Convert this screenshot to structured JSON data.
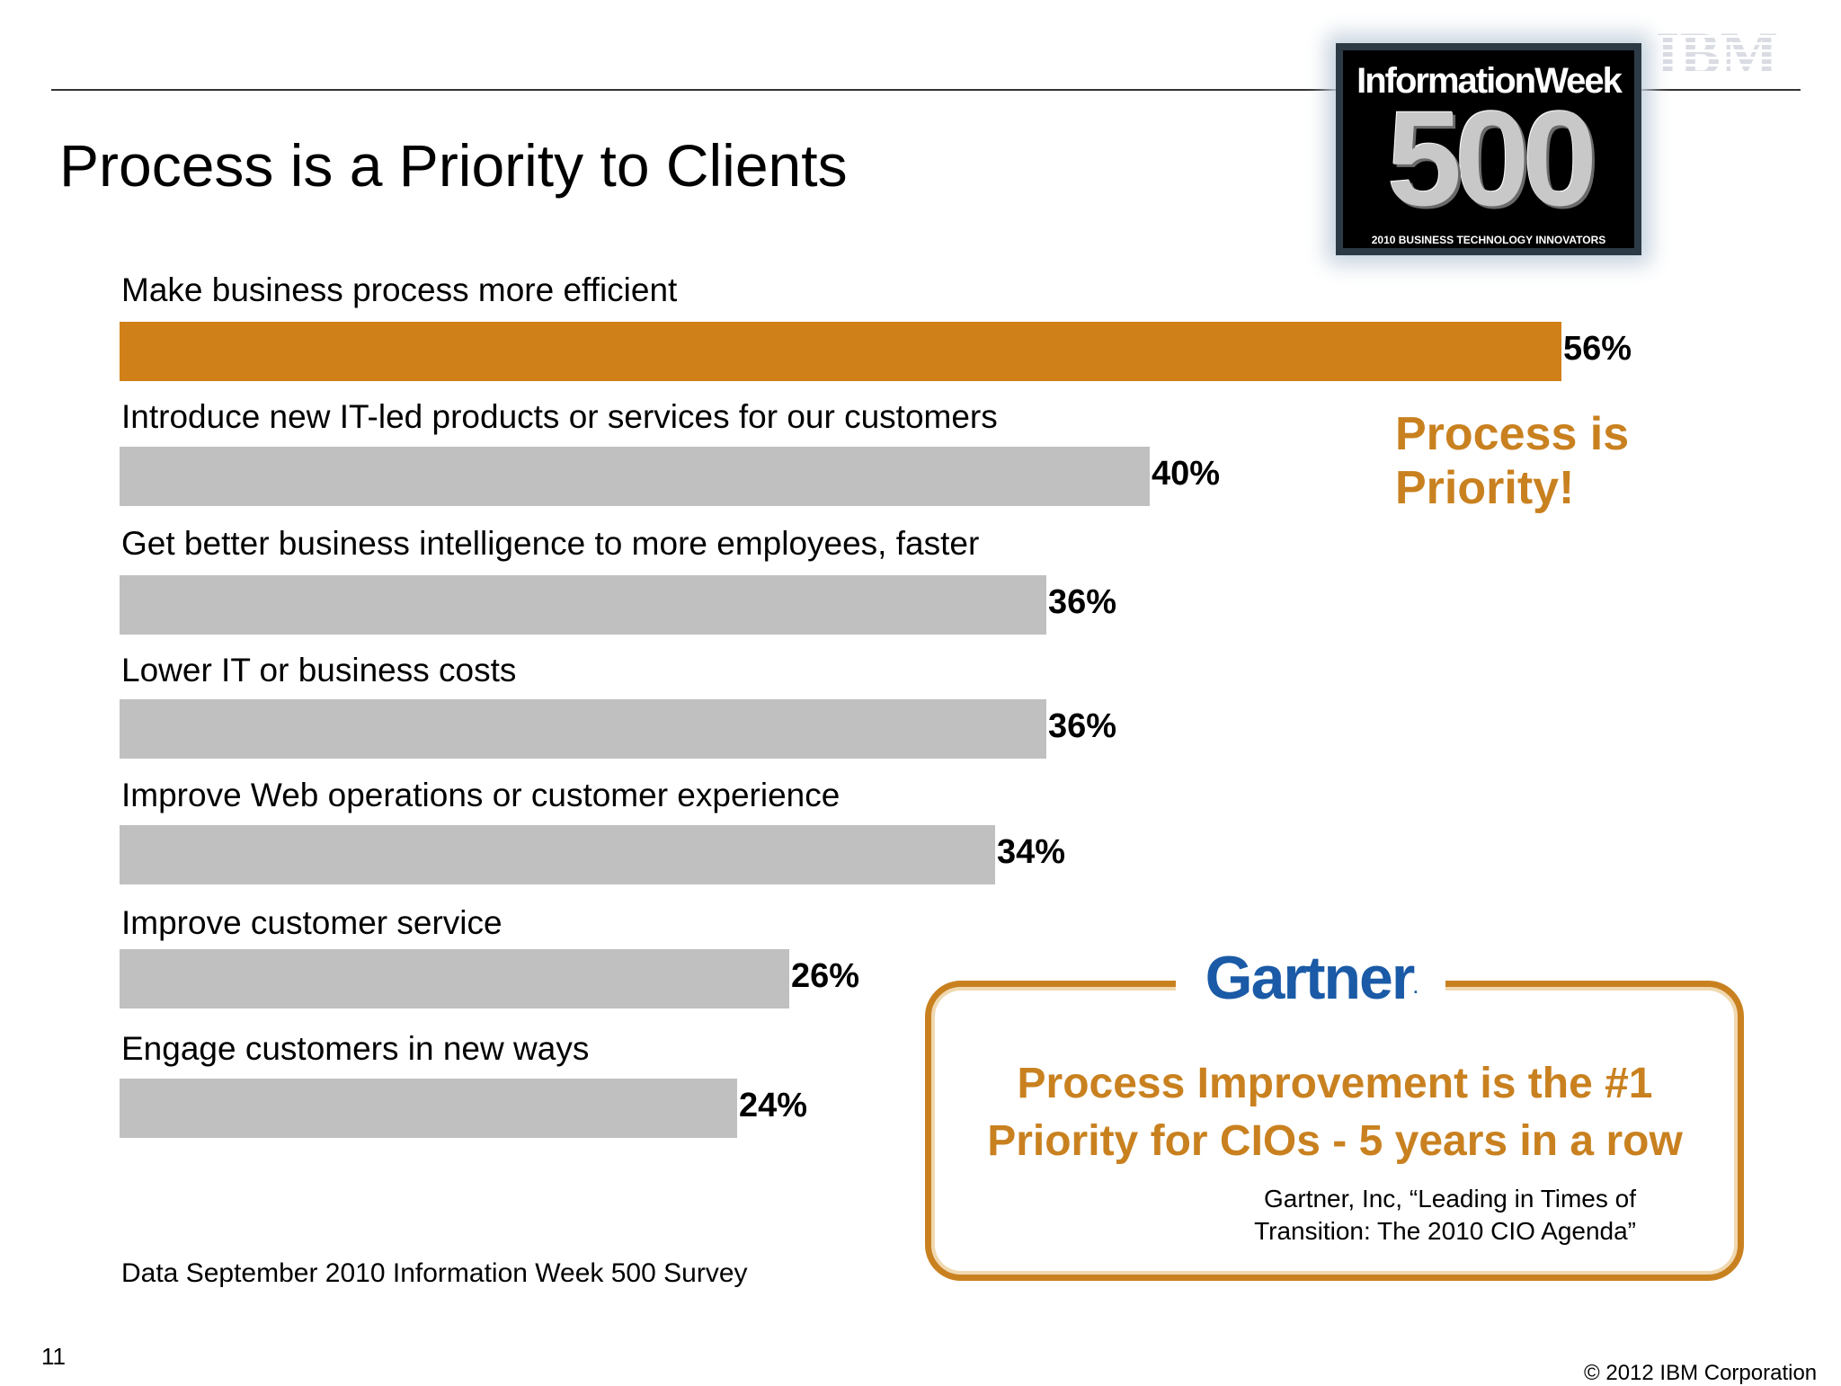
{
  "slide": {
    "title": "Process is a Priority to Clients",
    "page_number": "11",
    "copyright": "© 2012 IBM Corporation",
    "source_note": "Data September 2010 Information Week 500 Survey",
    "callout": {
      "line1": "Process is",
      "line2": "Priority!"
    }
  },
  "badge": {
    "name": "InformationWeek",
    "number": "500",
    "subtitle": "2010 BUSINESS TECHNOLOGY INNOVATORS"
  },
  "logos": {
    "ibm": "IBM",
    "gartner": "Gartner"
  },
  "gartner_box": {
    "message_line1": "Process Improvement is the #1",
    "message_line2": "Priority for CIOs - 5 years in a row",
    "citation_line1": "Gartner, Inc, “Leading in Times of",
    "citation_line2": "Transition: The 2010 CIO Agenda”"
  },
  "colors": {
    "highlight_bar": "#d08018",
    "bar": "#c0c0c0",
    "accent_text": "#c98120",
    "gartner_blue": "#1a5aa6"
  },
  "chart_data": {
    "type": "bar",
    "orientation": "horizontal",
    "categories": [
      "Make business process more efficient",
      "Introduce new IT-led products or services for our customers",
      "Get better business intelligence to more employees, faster",
      "Lower IT or business costs",
      "Improve Web operations or customer experience",
      "Improve customer service",
      "Engage customers in new ways"
    ],
    "values": [
      56,
      40,
      36,
      36,
      34,
      26,
      24
    ],
    "value_labels": [
      "56%",
      "40%",
      "36%",
      "36%",
      "34%",
      "26%",
      "24%"
    ],
    "unit": "%",
    "highlight_index": 0,
    "xlim": [
      0,
      56
    ],
    "grid": false,
    "legend": "none"
  }
}
